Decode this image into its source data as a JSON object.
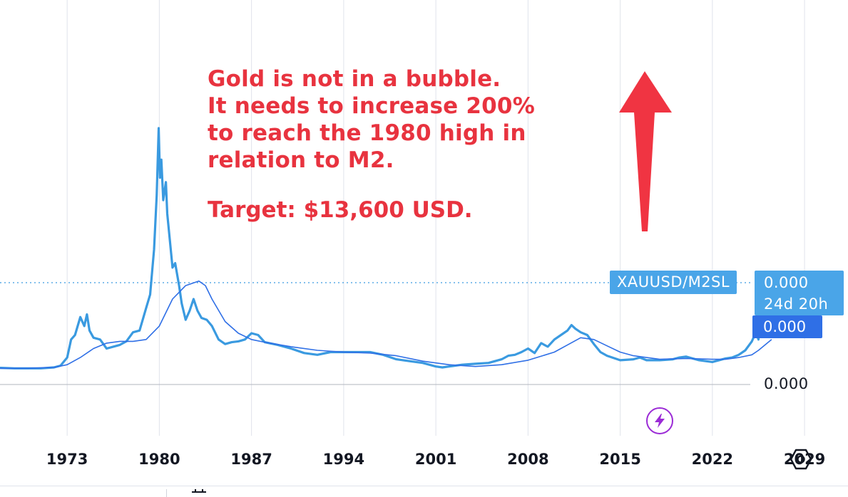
{
  "chart_data": {
    "type": "line",
    "title": "",
    "xlabel": "",
    "ylabel": "",
    "x_ticks": [
      "1973",
      "1980",
      "1987",
      "1994",
      "2001",
      "2008",
      "2015",
      "2022",
      "2029"
    ],
    "xlim": [
      1967.9,
      2032.3
    ],
    "grid": true,
    "series": [
      {
        "color": "#3a9ae0",
        "x": [
          1967.9,
          1969,
          1970,
          1971,
          1972,
          1972.5,
          1973,
          1973.3,
          1973.6,
          1974,
          1974.3,
          1974.5,
          1974.7,
          1975,
          1975.5,
          1976,
          1976.5,
          1977,
          1977.5,
          1978,
          1978.5,
          1979,
          1979.3,
          1979.6,
          1979.8,
          1979.95,
          1980.05,
          1980.15,
          1980.3,
          1980.5,
          1980.6,
          1980.8,
          1981,
          1981.2,
          1981.5,
          1981.7,
          1982,
          1982.3,
          1982.6,
          1982.9,
          1983.2,
          1983.6,
          1984,
          1984.5,
          1985,
          1985.5,
          1986,
          1986.5,
          1987,
          1987.5,
          1988,
          1989,
          1990,
          1991,
          1992,
          1993,
          1994,
          1995,
          1996,
          1997,
          1998,
          1999,
          2000,
          2001,
          2001.5,
          2002,
          2003,
          2004,
          2005,
          2006,
          2006.5,
          2007,
          2007.5,
          2008,
          2008.5,
          2009,
          2009.5,
          2010,
          2010.5,
          2011,
          2011.3,
          2011.6,
          2012,
          2012.5,
          2013,
          2013.5,
          2014,
          2015,
          2016,
          2016.5,
          2017,
          2018,
          2019,
          2019.5,
          2020,
          2020.5,
          2021,
          2022,
          2022.5,
          2023,
          2023.5,
          2024,
          2024.5,
          2025,
          2025.3,
          2025.5,
          2025.65,
          2025.8
        ],
        "values": [
          0.185,
          0.18,
          0.18,
          0.18,
          0.19,
          0.21,
          0.3,
          0.5,
          0.55,
          0.75,
          0.65,
          0.78,
          0.6,
          0.52,
          0.5,
          0.4,
          0.42,
          0.44,
          0.48,
          0.58,
          0.6,
          0.85,
          1.0,
          1.5,
          2.1,
          2.85,
          2.3,
          2.5,
          2.05,
          2.25,
          1.9,
          1.6,
          1.3,
          1.35,
          1.1,
          0.9,
          0.72,
          0.82,
          0.95,
          0.82,
          0.74,
          0.72,
          0.65,
          0.5,
          0.45,
          0.47,
          0.48,
          0.5,
          0.57,
          0.55,
          0.47,
          0.44,
          0.4,
          0.35,
          0.33,
          0.36,
          0.36,
          0.36,
          0.36,
          0.33,
          0.28,
          0.26,
          0.24,
          0.2,
          0.19,
          0.2,
          0.22,
          0.23,
          0.24,
          0.28,
          0.32,
          0.33,
          0.36,
          0.4,
          0.35,
          0.46,
          0.42,
          0.5,
          0.55,
          0.6,
          0.66,
          0.62,
          0.58,
          0.55,
          0.45,
          0.36,
          0.32,
          0.27,
          0.28,
          0.3,
          0.27,
          0.27,
          0.28,
          0.3,
          0.31,
          0.29,
          0.27,
          0.25,
          0.27,
          0.29,
          0.3,
          0.33,
          0.38,
          0.48,
          0.58,
          0.5,
          1.05,
          0.65
        ]
      },
      {
        "color": "#2f6fe6",
        "x": [
          1967.9,
          1969,
          1970,
          1971,
          1972,
          1973,
          1974,
          1975,
          1976,
          1977,
          1978,
          1979,
          1980,
          1981,
          1982,
          1983,
          1983.5,
          1984,
          1985,
          1986,
          1987,
          1988,
          1990,
          1992,
          1994,
          1996,
          1998,
          2000,
          2002,
          2004,
          2006,
          2008,
          2010,
          2011,
          2012,
          2013,
          2014,
          2015,
          2016,
          2018,
          2020,
          2022,
          2023,
          2024,
          2025,
          2025.5,
          2026.5
        ],
        "values": [
          0.18,
          0.18,
          0.18,
          0.185,
          0.19,
          0.22,
          0.3,
          0.4,
          0.46,
          0.48,
          0.48,
          0.5,
          0.65,
          0.95,
          1.1,
          1.15,
          1.1,
          0.95,
          0.7,
          0.57,
          0.5,
          0.47,
          0.42,
          0.38,
          0.36,
          0.35,
          0.32,
          0.26,
          0.22,
          0.2,
          0.22,
          0.27,
          0.36,
          0.44,
          0.52,
          0.5,
          0.43,
          0.36,
          0.32,
          0.28,
          0.29,
          0.28,
          0.28,
          0.3,
          0.33,
          0.38,
          0.5
        ]
      }
    ]
  },
  "annotation": {
    "text": "Gold is not in a bubble.\nIt needs to increase 200%\nto reach the 1980 high in\nrelation to M2.",
    "target": "Target: $13,600 USD."
  },
  "labels": {
    "symbol": "XAUUSD/M2SL",
    "price_value": "0.000",
    "countdown": "24d 20h",
    "ma_value": "0.000",
    "axis_value": "0.000"
  },
  "icons": {
    "bolt": "lightning-icon",
    "settings": "settings-icon",
    "calendar": "calendar-icon"
  },
  "colors": {
    "annotation": "#e8333f",
    "price_line": "#3a9ae0",
    "ma_line": "#2f6fe6",
    "bolt": "#9b2bd6",
    "tag_blue": "#4aa5e8",
    "tag_dark_blue": "#2f6fe6"
  }
}
